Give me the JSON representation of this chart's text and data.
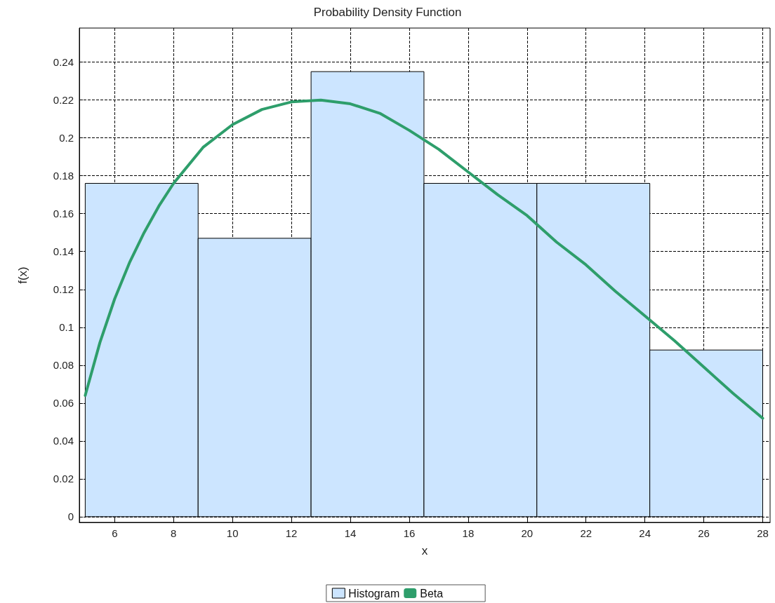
{
  "chart_data": {
    "type": "histogram",
    "title": "Probability Density Function",
    "xlabel": "x",
    "ylabel": "f(x)",
    "xlim": [
      4.8,
      28.25
    ],
    "xticks": [
      6,
      8,
      10,
      12,
      14,
      16,
      18,
      20,
      22,
      24,
      26,
      28
    ],
    "ylim": [
      -0.003,
      0.258
    ],
    "yticks": [
      0,
      0.02,
      0.04,
      0.06,
      0.08,
      0.1,
      0.12,
      0.14,
      0.16,
      0.18,
      0.2,
      0.22,
      0.24
    ],
    "grid": true,
    "legend": "bottom",
    "marker": "none",
    "line_style": "solid",
    "series": [
      {
        "name": "Histogram",
        "color": "#cce5ff",
        "bins": [
          5,
          8.833,
          12.667,
          16.5,
          20.333,
          24.167,
          28
        ],
        "values": [
          0.176,
          0.147,
          0.235,
          0.176,
          0.176,
          0.088
        ]
      },
      {
        "name": "Beta",
        "type": "line",
        "color": "#2e9e6b",
        "x": [
          5,
          5.5,
          6,
          6.5,
          7,
          7.5,
          8,
          9,
          10,
          11,
          12,
          13,
          14,
          15,
          16,
          17,
          18,
          19,
          20,
          21,
          22,
          23,
          24,
          25,
          26,
          27,
          28
        ],
        "values": [
          0.064,
          0.092,
          0.115,
          0.134,
          0.15,
          0.164,
          0.176,
          0.195,
          0.207,
          0.215,
          0.219,
          0.22,
          0.218,
          0.213,
          0.204,
          0.194,
          0.182,
          0.17,
          0.159,
          0.145,
          0.133,
          0.119,
          0.106,
          0.093,
          0.079,
          0.065,
          0.052
        ]
      }
    ]
  }
}
